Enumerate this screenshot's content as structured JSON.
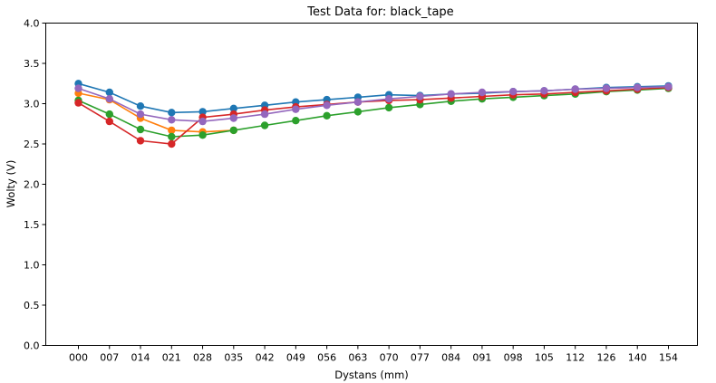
{
  "chart_data": {
    "type": "line",
    "title": "Test Data for: black_tape",
    "xlabel": "Dystans (mm)",
    "ylabel": "Wolty (V)",
    "ylim": [
      0,
      4
    ],
    "yticks": [
      "0.0",
      "0.5",
      "1.0",
      "1.5",
      "2.0",
      "2.5",
      "3.0",
      "3.5",
      "4.0"
    ],
    "categories": [
      "000",
      "007",
      "014",
      "021",
      "028",
      "035",
      "042",
      "049",
      "056",
      "063",
      "070",
      "077",
      "084",
      "091",
      "098",
      "105",
      "112",
      "126",
      "140",
      "154"
    ],
    "grid": false,
    "legend": "none",
    "series": [
      {
        "color": "#1f77b4",
        "values": [
          3.25,
          3.14,
          2.97,
          2.89,
          2.9,
          2.94,
          2.98,
          3.02,
          3.05,
          3.08,
          3.11,
          3.1,
          3.12,
          3.13,
          3.15,
          3.16,
          3.18,
          3.2,
          3.21,
          3.22
        ]
      },
      {
        "color": "#ff7f0e",
        "values": [
          3.13,
          3.05,
          2.82,
          2.67,
          2.65,
          2.67,
          null,
          null,
          null,
          null,
          null,
          null,
          null,
          null,
          null,
          null,
          null,
          null,
          null,
          null
        ]
      },
      {
        "color": "#2ca02c",
        "values": [
          3.04,
          2.87,
          2.68,
          2.59,
          2.61,
          2.67,
          2.73,
          2.79,
          2.85,
          2.9,
          2.95,
          2.99,
          3.03,
          3.06,
          3.08,
          3.1,
          3.12,
          3.15,
          3.17,
          3.19
        ]
      },
      {
        "color": "#d62728",
        "values": [
          3.01,
          2.78,
          2.54,
          2.5,
          2.83,
          2.87,
          2.92,
          2.96,
          2.99,
          3.02,
          3.04,
          3.05,
          3.07,
          3.09,
          3.11,
          3.12,
          3.14,
          3.16,
          3.18,
          3.2
        ]
      },
      {
        "color": "#9467bd",
        "values": [
          3.19,
          3.06,
          2.87,
          2.8,
          2.78,
          2.82,
          2.87,
          2.93,
          2.98,
          3.02,
          3.06,
          3.09,
          3.12,
          3.14,
          3.15,
          3.16,
          3.18,
          3.19,
          3.2,
          3.21
        ]
      }
    ]
  }
}
